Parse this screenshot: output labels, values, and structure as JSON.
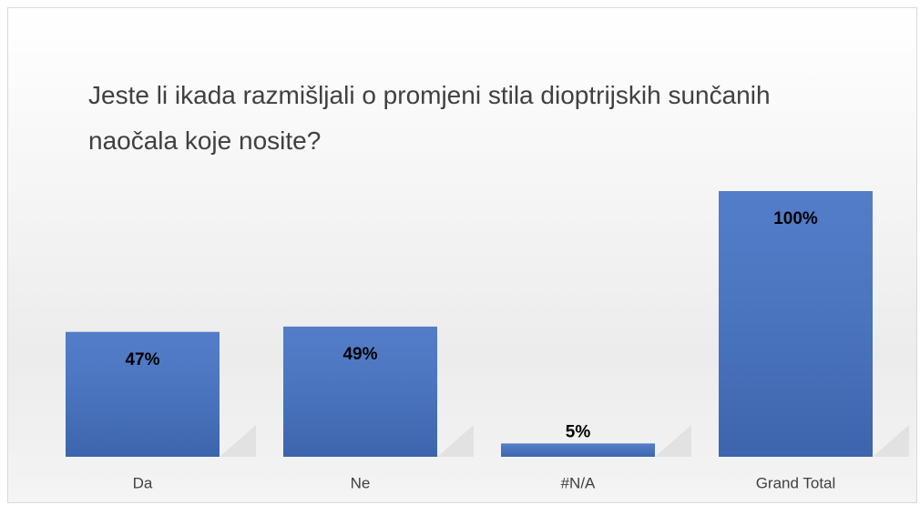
{
  "chart_data": {
    "type": "bar",
    "title": "Jeste li ikada razmišljali o promjeni stila dioptrijskih sunčanih naočala koje nosite?",
    "categories": [
      "Da",
      "Ne",
      "#N/A",
      "Grand Total"
    ],
    "values": [
      47,
      49,
      5,
      100
    ],
    "value_labels": [
      "47%",
      "49%",
      "5%",
      "100%"
    ],
    "color": "#4472c4",
    "ylim": [
      0,
      100
    ]
  }
}
